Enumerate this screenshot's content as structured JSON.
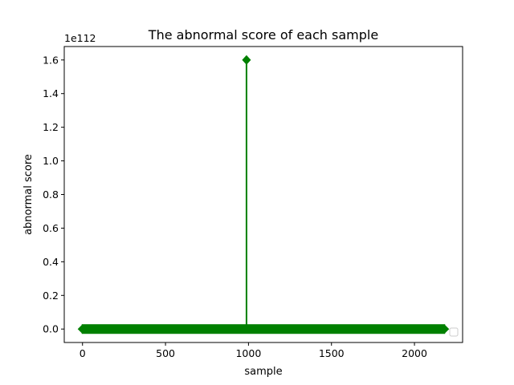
{
  "chart_data": {
    "type": "stem",
    "title": "The abnormal score of each sample",
    "xlabel": "sample",
    "ylabel": "abnormal score",
    "y_offset_label": "1e112",
    "xlim": [
      -110,
      2290
    ],
    "ylim": [
      -0.08,
      1.68
    ],
    "xticks": [
      0,
      500,
      1000,
      1500,
      2000
    ],
    "xtick_labels": [
      "0",
      "500",
      "1000",
      "1500",
      "2000"
    ],
    "yticks": [
      0.0,
      0.2,
      0.4,
      0.6,
      0.8,
      1.0,
      1.2,
      1.4,
      1.6
    ],
    "ytick_labels": [
      "0.0",
      "0.2",
      "0.4",
      "0.6",
      "0.8",
      "1.0",
      "1.2",
      "1.4",
      "1.6"
    ],
    "sample_range": [
      0,
      2180
    ],
    "baseline_value": 0,
    "peaks": [
      {
        "x": 988,
        "y": 1.6
      }
    ],
    "color": "#008000",
    "marker": "diamond",
    "grid": false,
    "legend": "lower-right, empty"
  }
}
